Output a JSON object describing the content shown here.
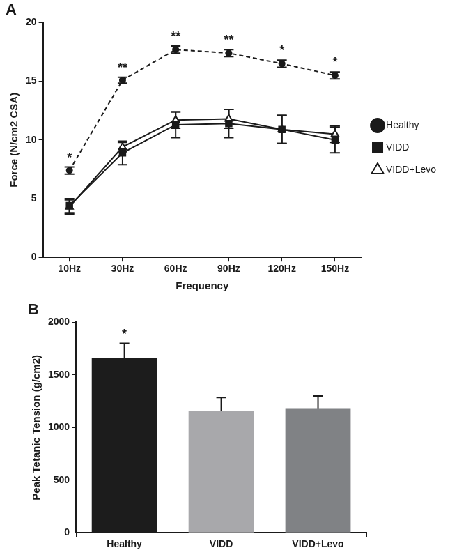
{
  "chart_data": [
    {
      "type": "line",
      "title": "A",
      "x_label": "Frequency",
      "y_label": "Force (N/cm2 CSA)",
      "categories": [
        "10Hz",
        "30Hz",
        "60Hz",
        "90Hz",
        "120Hz",
        "150Hz"
      ],
      "series": [
        {
          "name": "Healthy",
          "color": "#1a1a1a",
          "line_style": "dashed",
          "marker": "circle",
          "values": [
            7.4,
            15.1,
            17.7,
            17.4,
            16.5,
            15.5
          ],
          "errors": [
            0.3,
            0.25,
            0.3,
            0.3,
            0.3,
            0.3
          ]
        },
        {
          "name": "VIDD",
          "color": "#1a1a1a",
          "line_style": "solid",
          "marker": "square",
          "values": [
            4.4,
            8.9,
            11.3,
            11.4,
            10.9,
            10.0
          ],
          "errors": [
            0.6,
            1.0,
            1.1,
            1.2,
            1.2,
            1.1
          ]
        },
        {
          "name": "VIDD+Levo",
          "color": "#1a1a1a",
          "line_style": "solid",
          "marker": "open-triangle",
          "values": [
            4.3,
            9.4,
            11.7,
            11.8,
            10.9,
            10.5
          ],
          "errors": [
            0.6,
            0.4,
            0.7,
            0.8,
            1.2,
            0.7
          ]
        }
      ],
      "ylim": [
        0,
        20
      ],
      "yticks": [
        0,
        5,
        10,
        15,
        20
      ],
      "grid": false,
      "legend": "right",
      "annotations": [
        {
          "category": "10Hz",
          "series": "Healthy",
          "text": "*"
        },
        {
          "category": "30Hz",
          "series": "Healthy",
          "text": "**"
        },
        {
          "category": "60Hz",
          "series": "Healthy",
          "text": "**"
        },
        {
          "category": "90Hz",
          "series": "Healthy",
          "text": "**"
        },
        {
          "category": "120Hz",
          "series": "Healthy",
          "text": "*"
        },
        {
          "category": "150Hz",
          "series": "Healthy",
          "text": "*"
        }
      ]
    },
    {
      "type": "bar",
      "title": "B",
      "y_label": "Peak Tetanic Tension (g/cm2)",
      "categories": [
        "Healthy",
        "VIDD",
        "VIDD+Levo"
      ],
      "values": [
        1665,
        1160,
        1185
      ],
      "errors": [
        135,
        125,
        115
      ],
      "colors": [
        "#1c1c1c",
        "#a8a8ab",
        "#808285"
      ],
      "ylim": [
        0,
        2000
      ],
      "yticks": [
        0,
        500,
        1000,
        1500,
        2000
      ],
      "grid": false,
      "annotations": [
        {
          "category": "Healthy",
          "text": "*"
        }
      ]
    }
  ]
}
